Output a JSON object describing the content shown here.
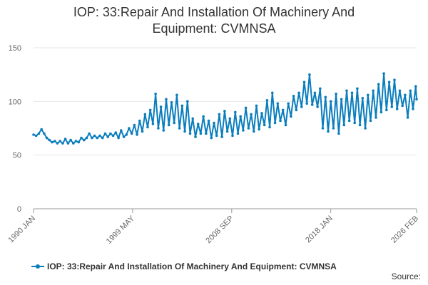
{
  "chart_data": {
    "type": "line",
    "title_lines": [
      "IOP: 33:Repair And Installation Of Machinery And",
      "Equipment: CVMNSA"
    ],
    "xlabel": "",
    "ylabel": "",
    "ylim": [
      0,
      150
    ],
    "yticks": [
      0,
      50,
      100,
      150
    ],
    "x_range": [
      "1990-01",
      "2026-02"
    ],
    "x_ticks": [
      {
        "label": "1990 JAN",
        "date": "1990-01"
      },
      {
        "label": "1999 MAY",
        "date": "1999-05"
      },
      {
        "label": "2008 SEP",
        "date": "2008-09"
      },
      {
        "label": "2018 JAN",
        "date": "2018-01"
      },
      {
        "label": "2026 FEB",
        "date": "2026-02"
      }
    ],
    "grid": true,
    "legend_position": "bottom-left",
    "color": "#0a7dbd",
    "series": [
      {
        "name": "IOP: 33:Repair And Installation Of Machinery And Equipment: CVMNSA",
        "points": [
          [
            "1990-01",
            69
          ],
          [
            "1990-04",
            68
          ],
          [
            "1990-07",
            70
          ],
          [
            "1990-10",
            74
          ],
          [
            "1991-01",
            70
          ],
          [
            "1991-04",
            66
          ],
          [
            "1991-07",
            64
          ],
          [
            "1991-10",
            62
          ],
          [
            "1992-01",
            63
          ],
          [
            "1992-04",
            61
          ],
          [
            "1992-07",
            63
          ],
          [
            "1992-10",
            61
          ],
          [
            "1993-01",
            65
          ],
          [
            "1993-04",
            61
          ],
          [
            "1993-07",
            64
          ],
          [
            "1993-10",
            61
          ],
          [
            "1994-01",
            63
          ],
          [
            "1994-04",
            62
          ],
          [
            "1994-07",
            66
          ],
          [
            "1994-10",
            64
          ],
          [
            "1995-01",
            66
          ],
          [
            "1995-04",
            70
          ],
          [
            "1995-07",
            66
          ],
          [
            "1995-10",
            68
          ],
          [
            "1996-01",
            66
          ],
          [
            "1996-04",
            68
          ],
          [
            "1996-07",
            66
          ],
          [
            "1996-10",
            70
          ],
          [
            "1997-01",
            67
          ],
          [
            "1997-04",
            70
          ],
          [
            "1997-07",
            68
          ],
          [
            "1997-10",
            71
          ],
          [
            "1998-01",
            66
          ],
          [
            "1998-04",
            73
          ],
          [
            "1998-07",
            67
          ],
          [
            "1998-10",
            69
          ],
          [
            "1999-01",
            75
          ],
          [
            "1999-04",
            70
          ],
          [
            "1999-07",
            78
          ],
          [
            "1999-10",
            69
          ],
          [
            "2000-01",
            82
          ],
          [
            "2000-04",
            72
          ],
          [
            "2000-07",
            88
          ],
          [
            "2000-10",
            76
          ],
          [
            "2001-01",
            92
          ],
          [
            "2001-04",
            79
          ],
          [
            "2001-07",
            107
          ],
          [
            "2001-10",
            75
          ],
          [
            "2002-01",
            95
          ],
          [
            "2002-04",
            73
          ],
          [
            "2002-07",
            102
          ],
          [
            "2002-10",
            78
          ],
          [
            "2003-01",
            99
          ],
          [
            "2003-04",
            80
          ],
          [
            "2003-07",
            106
          ],
          [
            "2003-10",
            75
          ],
          [
            "2004-01",
            96
          ],
          [
            "2004-04",
            72
          ],
          [
            "2004-07",
            100
          ],
          [
            "2004-10",
            70
          ],
          [
            "2005-01",
            84
          ],
          [
            "2005-04",
            67
          ],
          [
            "2005-07",
            79
          ],
          [
            "2005-10",
            70
          ],
          [
            "2006-01",
            86
          ],
          [
            "2006-04",
            70
          ],
          [
            "2006-07",
            82
          ],
          [
            "2006-10",
            66
          ],
          [
            "2007-01",
            80
          ],
          [
            "2007-04",
            68
          ],
          [
            "2007-07",
            88
          ],
          [
            "2007-10",
            67
          ],
          [
            "2008-01",
            91
          ],
          [
            "2008-04",
            72
          ],
          [
            "2008-07",
            84
          ],
          [
            "2008-10",
            68
          ],
          [
            "2009-01",
            90
          ],
          [
            "2009-04",
            70
          ],
          [
            "2009-07",
            86
          ],
          [
            "2009-10",
            73
          ],
          [
            "2010-01",
            94
          ],
          [
            "2010-04",
            75
          ],
          [
            "2010-07",
            88
          ],
          [
            "2010-10",
            72
          ],
          [
            "2011-01",
            96
          ],
          [
            "2011-04",
            74
          ],
          [
            "2011-07",
            89
          ],
          [
            "2011-10",
            78
          ],
          [
            "2012-01",
            101
          ],
          [
            "2012-04",
            76
          ],
          [
            "2012-07",
            108
          ],
          [
            "2012-10",
            80
          ],
          [
            "2013-01",
            98
          ],
          [
            "2013-04",
            82
          ],
          [
            "2013-07",
            92
          ],
          [
            "2013-10",
            78
          ],
          [
            "2014-01",
            98
          ],
          [
            "2014-04",
            86
          ],
          [
            "2014-07",
            105
          ],
          [
            "2014-10",
            92
          ],
          [
            "2015-01",
            108
          ],
          [
            "2015-04",
            95
          ],
          [
            "2015-07",
            118
          ],
          [
            "2015-10",
            98
          ],
          [
            "2016-01",
            125
          ],
          [
            "2016-04",
            97
          ],
          [
            "2016-07",
            108
          ],
          [
            "2016-10",
            95
          ],
          [
            "2017-01",
            112
          ],
          [
            "2017-04",
            75
          ],
          [
            "2017-07",
            104
          ],
          [
            "2017-10",
            72
          ],
          [
            "2018-01",
            100
          ],
          [
            "2018-04",
            75
          ],
          [
            "2018-07",
            107
          ],
          [
            "2018-10",
            70
          ],
          [
            "2019-01",
            102
          ],
          [
            "2019-04",
            78
          ],
          [
            "2019-07",
            110
          ],
          [
            "2019-10",
            82
          ],
          [
            "2020-01",
            108
          ],
          [
            "2020-04",
            80
          ],
          [
            "2020-07",
            112
          ],
          [
            "2020-10",
            78
          ],
          [
            "2021-01",
            103
          ],
          [
            "2021-04",
            75
          ],
          [
            "2021-07",
            106
          ],
          [
            "2021-10",
            82
          ],
          [
            "2022-01",
            110
          ],
          [
            "2022-04",
            85
          ],
          [
            "2022-07",
            116
          ],
          [
            "2022-10",
            90
          ],
          [
            "2023-01",
            126
          ],
          [
            "2023-04",
            92
          ],
          [
            "2023-07",
            118
          ],
          [
            "2023-10",
            95
          ],
          [
            "2024-01",
            120
          ],
          [
            "2024-04",
            93
          ],
          [
            "2024-07",
            110
          ],
          [
            "2024-10",
            96
          ],
          [
            "2025-01",
            106
          ],
          [
            "2025-04",
            85
          ],
          [
            "2025-07",
            110
          ],
          [
            "2025-10",
            93
          ],
          [
            "2026-01",
            114
          ],
          [
            "2026-02",
            102
          ]
        ]
      }
    ]
  },
  "legend": {
    "label": "IOP: 33:Repair And Installation Of Machinery And Equipment: CVMNSA"
  },
  "source": {
    "label": "Source:"
  }
}
